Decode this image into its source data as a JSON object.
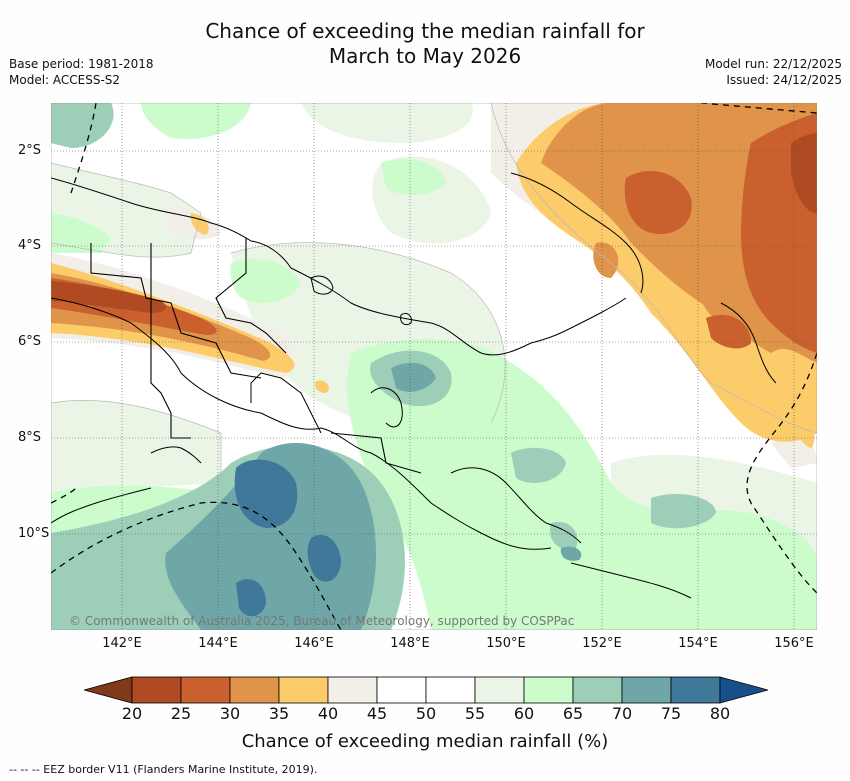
{
  "title": {
    "line1": "Chance of exceeding the median rainfall for",
    "line2": "March to May 2026"
  },
  "meta": {
    "base_period": "Base period: 1981-2018",
    "model": "Model: ACCESS-S2",
    "model_run": "Model run: 22/12/2025",
    "issued": "Issued: 24/12/2025"
  },
  "axes": {
    "longitudes": [
      "142°E",
      "144°E",
      "146°E",
      "148°E",
      "150°E",
      "152°E",
      "154°E",
      "156°E"
    ],
    "latitudes": [
      "2°S",
      "4°S",
      "6°S",
      "8°S",
      "10°S"
    ]
  },
  "credit": "© Commonwealth of Australia 2025, Bureau of Meteorology, supported by COSPPac",
  "colorbar": {
    "labels": [
      "20",
      "25",
      "30",
      "35",
      "40",
      "45",
      "50",
      "55",
      "60",
      "65",
      "70",
      "75",
      "80"
    ],
    "colors": [
      "#7f3a1a",
      "#b04a22",
      "#c9602e",
      "#e0944a",
      "#fdcc6a",
      "#f2efe9",
      "#ffffff",
      "#ffffff",
      "#eaf5e6",
      "#ccfccc",
      "#9dcfb8",
      "#6fa7a8",
      "#3f7898",
      "#174f8a"
    ],
    "title": "Chance of exceeding median rainfall (%)"
  },
  "legend": {
    "eez": "--  --  -- EEZ border V11 (Flanders Marine Institute, 2019)."
  }
}
